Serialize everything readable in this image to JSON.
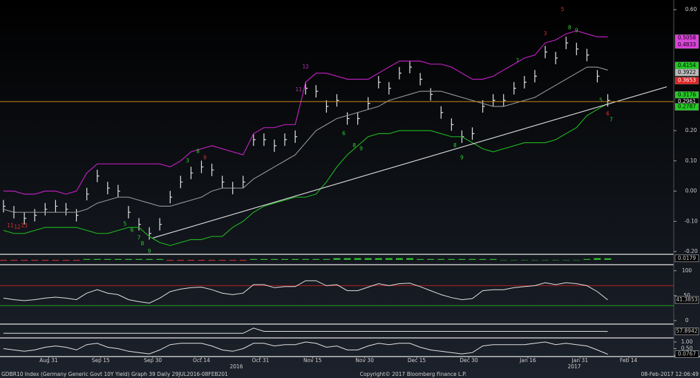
{
  "chart_data": [
    {
      "type": "price",
      "x": [
        20,
        23,
        26,
        29,
        32,
        35,
        38,
        41,
        44,
        47,
        50,
        53,
        56,
        59,
        62,
        65,
        68,
        71,
        74,
        77,
        80,
        83,
        86,
        89,
        92,
        95,
        98,
        101,
        104,
        107,
        110,
        113,
        116,
        119,
        122,
        125,
        128,
        131,
        134,
        137,
        140,
        143,
        146,
        149,
        152,
        155,
        158,
        161,
        164,
        167,
        170,
        173,
        176,
        179,
        182,
        185,
        188,
        191,
        194
      ],
      "xlim": [
        19,
        213
      ],
      "xticks": [
        {
          "value": 33,
          "label": "Aug 31"
        },
        {
          "value": 48,
          "label": "Sep 15"
        },
        {
          "value": 63,
          "label": "Sep 30"
        },
        {
          "value": 77,
          "label": "Oct 14"
        },
        {
          "value": 94,
          "label": "Oct 31"
        },
        {
          "value": 109,
          "label": "Nov 15"
        },
        {
          "value": 124,
          "label": "Nov 30"
        },
        {
          "value": 139,
          "label": "Dec 15"
        },
        {
          "value": 154,
          "label": "Dec 30"
        },
        {
          "value": 171,
          "label": "Jan 16"
        },
        {
          "value": 186,
          "label": "Jan 31"
        },
        {
          "value": 200,
          "label": "Feb 14"
        }
      ],
      "ylim": [
        -0.209,
        0.632
      ],
      "yticks": [
        {
          "value": 0.6,
          "label": "0.60"
        },
        {
          "value": 0.2,
          "label": "0.20"
        },
        {
          "value": 0.1,
          "label": "0.10"
        },
        {
          "value": 0,
          "label": "0.00"
        },
        {
          "value": -0.1,
          "label": "-0.10"
        },
        {
          "value": -0.2,
          "label": "-0.20"
        }
      ],
      "series": [
        {
          "color": "#e8e8e8",
          "style": "bars",
          "values": [
            -0.05,
            -0.07,
            -0.09,
            -0.08,
            -0.06,
            -0.05,
            -0.06,
            -0.08,
            -0.01,
            0.05,
            0.01,
            0.0,
            -0.07,
            -0.11,
            -0.14,
            -0.11,
            -0.02,
            0.03,
            0.06,
            0.08,
            0.07,
            0.03,
            0.01,
            0.03,
            0.17,
            0.17,
            0.15,
            0.17,
            0.18,
            0.34,
            0.33,
            0.28,
            0.3,
            0.24,
            0.24,
            0.29,
            0.36,
            0.34,
            0.39,
            0.41,
            0.37,
            0.32,
            0.26,
            0.22,
            0.18,
            0.19,
            0.28,
            0.3,
            0.3,
            0.34,
            0.36,
            0.38,
            0.46,
            0.44,
            0.49,
            0.47,
            0.45,
            0.38,
            0.3
          ]
        },
        {
          "color": "#c020c0",
          "style": "line",
          "values": [
            0.0,
            0.0,
            -0.01,
            -0.01,
            0.0,
            0.0,
            -0.01,
            0.0,
            0.06,
            0.09,
            0.09,
            0.09,
            0.09,
            0.09,
            0.09,
            0.09,
            0.08,
            0.1,
            0.13,
            0.14,
            0.15,
            0.14,
            0.13,
            0.12,
            0.19,
            0.21,
            0.21,
            0.22,
            0.22,
            0.36,
            0.39,
            0.39,
            0.38,
            0.37,
            0.37,
            0.37,
            0.39,
            0.41,
            0.43,
            0.43,
            0.43,
            0.42,
            0.42,
            0.41,
            0.39,
            0.37,
            0.37,
            0.38,
            0.4,
            0.42,
            0.44,
            0.45,
            0.49,
            0.5,
            0.52,
            0.53,
            0.52,
            0.51,
            0.51
          ]
        },
        {
          "color": "#20b020",
          "style": "line",
          "values": [
            -0.13,
            -0.14,
            -0.14,
            -0.13,
            -0.12,
            -0.12,
            -0.12,
            -0.12,
            -0.13,
            -0.14,
            -0.14,
            -0.13,
            -0.12,
            -0.12,
            -0.15,
            -0.17,
            -0.18,
            -0.17,
            -0.16,
            -0.16,
            -0.15,
            -0.15,
            -0.12,
            -0.1,
            -0.07,
            -0.05,
            -0.04,
            -0.03,
            -0.02,
            -0.02,
            -0.01,
            0.03,
            0.08,
            0.12,
            0.15,
            0.18,
            0.19,
            0.19,
            0.2,
            0.2,
            0.2,
            0.2,
            0.19,
            0.18,
            0.18,
            0.16,
            0.14,
            0.13,
            0.14,
            0.15,
            0.16,
            0.16,
            0.16,
            0.17,
            0.19,
            0.21,
            0.25,
            0.27,
            0.29
          ]
        },
        {
          "color": "#909090",
          "style": "line",
          "values": [
            -0.06,
            -0.07,
            -0.07,
            -0.07,
            -0.07,
            -0.07,
            -0.07,
            -0.07,
            -0.06,
            -0.04,
            -0.03,
            -0.02,
            -0.02,
            -0.03,
            -0.04,
            -0.05,
            -0.05,
            -0.04,
            -0.03,
            -0.02,
            0.0,
            0.01,
            0.01,
            0.01,
            0.04,
            0.06,
            0.08,
            0.1,
            0.12,
            0.16,
            0.2,
            0.22,
            0.24,
            0.25,
            0.26,
            0.27,
            0.28,
            0.3,
            0.31,
            0.32,
            0.33,
            0.33,
            0.33,
            0.32,
            0.31,
            0.3,
            0.29,
            0.28,
            0.28,
            0.29,
            0.3,
            0.31,
            0.33,
            0.35,
            0.37,
            0.39,
            0.41,
            0.41,
            0.4
          ]
        }
      ],
      "trendline": {
        "color": "#d8d8d8",
        "x": [
          63,
          211
        ],
        "y": [
          -0.155,
          0.345
        ]
      },
      "last_labels": [
        {
          "value": 0.5058,
          "label": "0.5058",
          "color": "#e040e0",
          "text_color": "#000"
        },
        {
          "value": 0.4833,
          "label": "0.4833",
          "color": "#e040e0",
          "text_color": "#000"
        },
        {
          "value": 0.4154,
          "label": "0.4154",
          "color": "#22cc22",
          "text_color": "#000"
        },
        {
          "value": 0.3922,
          "label": "0.3922",
          "color": "#bbbbbb",
          "text_color": "#000"
        },
        {
          "value": 0.3653,
          "label": "0.3653",
          "color": "#e02020",
          "text_color": "#fff"
        },
        {
          "value": 0.3176,
          "label": "0.3176",
          "color": "#22cc22",
          "text_color": "#000"
        },
        {
          "value": 0.2961,
          "label": "0.2961",
          "color": "#000000",
          "text_color": "#fff",
          "line_color": "#d09020"
        },
        {
          "value": 0.2787,
          "label": "0.2787",
          "color": "#22cc22",
          "text_color": "#000"
        }
      ],
      "annotations": [
        {
          "x": 22,
          "y": -0.115,
          "text": "11",
          "color": "#e03030"
        },
        {
          "x": 24,
          "y": -0.12,
          "text": "12",
          "color": "#e03030"
        },
        {
          "x": 26,
          "y": -0.115,
          "text": "13",
          "color": "#e03030"
        },
        {
          "x": 55,
          "y": -0.11,
          "text": "5",
          "color": "#30d030"
        },
        {
          "x": 57,
          "y": -0.13,
          "text": "6",
          "color": "#30d030"
        },
        {
          "x": 59,
          "y": -0.155,
          "text": "7",
          "color": "#30d030"
        },
        {
          "x": 60,
          "y": -0.175,
          "text": "8",
          "color": "#30d030"
        },
        {
          "x": 62,
          "y": -0.2,
          "text": "9",
          "color": "#30d030"
        },
        {
          "x": 73,
          "y": 0.1,
          "text": "3",
          "color": "#30d030"
        },
        {
          "x": 76,
          "y": 0.13,
          "text": "8",
          "color": "#30d030"
        },
        {
          "x": 78,
          "y": 0.11,
          "text": "9",
          "color": "#e03030"
        },
        {
          "x": 105,
          "y": 0.335,
          "text": "11",
          "color": "#c030c0"
        },
        {
          "x": 107,
          "y": 0.41,
          "text": "12",
          "color": "#c030c0"
        },
        {
          "x": 118,
          "y": 0.19,
          "text": "6",
          "color": "#30d030"
        },
        {
          "x": 121,
          "y": 0.15,
          "text": "8",
          "color": "#30d030"
        },
        {
          "x": 123,
          "y": 0.14,
          "text": "9",
          "color": "#30d030"
        },
        {
          "x": 150,
          "y": 0.15,
          "text": "8",
          "color": "#30d030"
        },
        {
          "x": 152,
          "y": 0.11,
          "text": "9",
          "color": "#30d030"
        },
        {
          "x": 168,
          "y": 0.43,
          "text": "7",
          "color": "#30d030"
        },
        {
          "x": 176,
          "y": 0.52,
          "text": "3",
          "color": "#e03030"
        },
        {
          "x": 181,
          "y": 0.6,
          "text": "5",
          "color": "#e03030"
        },
        {
          "x": 183,
          "y": 0.54,
          "text": "8",
          "color": "#30d030"
        },
        {
          "x": 185,
          "y": 0.53,
          "text": "9",
          "color": "#30d030"
        },
        {
          "x": 192,
          "y": 0.3,
          "text": "5",
          "color": "#30d030"
        },
        {
          "x": 194,
          "y": 0.255,
          "text": "6",
          "color": "#e03030"
        },
        {
          "x": 195,
          "y": 0.235,
          "text": "7",
          "color": "#30d030"
        }
      ]
    },
    {
      "type": "histogram",
      "color": "#30c030",
      "ylim": [
        -0.05,
        0.05
      ],
      "last_value": 0.0179,
      "values": [
        -0.01,
        -0.01,
        -0.01,
        -0.01,
        -0.01,
        -0.01,
        -0.01,
        -0.01,
        0.01,
        0.01,
        0.01,
        0.01,
        0.01,
        0.01,
        0.01,
        0.01,
        -0.01,
        -0.01,
        -0.01,
        -0.01,
        -0.01,
        -0.01,
        -0.01,
        -0.01,
        0.01,
        0.01,
        0.01,
        0.01,
        0.01,
        0.01,
        0.01,
        0.01,
        0.02,
        0.02,
        0.02,
        0.02,
        0.02,
        0.02,
        0.02,
        0.02,
        0.01,
        0.01,
        0.01,
        0.01,
        0.01,
        0.01,
        0.01,
        0.01,
        0.0,
        0.0,
        0.0,
        0.0,
        0.0,
        0.0,
        0.0,
        0.0,
        0.01,
        0.02,
        0.0179
      ]
    },
    {
      "type": "line",
      "color": "#e8e8e8",
      "ylim": [
        -3,
        108
      ],
      "yticks": [
        100,
        50,
        0
      ],
      "last_value": 41.3853,
      "levels": [
        {
          "value": 70,
          "color": "#c02020"
        },
        {
          "value": 30,
          "color": "#20a020"
        }
      ],
      "values": [
        45,
        42,
        40,
        42,
        45,
        47,
        45,
        42,
        55,
        62,
        55,
        52,
        42,
        38,
        35,
        45,
        58,
        63,
        66,
        67,
        62,
        55,
        52,
        55,
        72,
        72,
        66,
        68,
        68,
        80,
        80,
        70,
        72,
        60,
        60,
        67,
        74,
        70,
        74,
        75,
        68,
        60,
        52,
        46,
        42,
        44,
        60,
        62,
        62,
        66,
        68,
        70,
        76,
        72,
        76,
        74,
        70,
        58,
        41.3853
      ]
    },
    {
      "type": "line",
      "color": "#e8e8e8",
      "ylim": [
        50,
        66
      ],
      "last_value": 57.8942,
      "values": [
        55,
        55,
        55,
        55,
        55,
        55,
        55,
        55,
        55,
        55,
        55,
        55,
        55,
        55,
        55,
        55,
        55,
        55,
        55,
        55,
        55,
        55,
        55,
        55,
        63,
        58,
        58,
        58,
        58,
        58,
        58,
        58,
        58,
        58,
        58,
        58,
        58,
        58,
        58,
        58,
        58,
        58,
        58,
        58,
        58,
        58,
        58,
        58,
        58,
        58,
        58,
        58,
        58,
        58,
        58,
        58,
        58,
        58,
        57.8942
      ]
    },
    {
      "type": "line",
      "color": "#e8e8e8",
      "ylim": [
        -0.05,
        1.15
      ],
      "yticks": [
        {
          "value": 1,
          "label": "1.00"
        },
        {
          "value": 0.5,
          "label": "0.50"
        },
        {
          "value": 0,
          "label": "0.00"
        }
      ],
      "last_value": 0.0767,
      "values": [
        0.5,
        0.4,
        0.3,
        0.4,
        0.6,
        0.7,
        0.6,
        0.4,
        0.8,
        0.9,
        0.6,
        0.5,
        0.3,
        0.2,
        0.1,
        0.4,
        0.8,
        0.9,
        0.9,
        0.9,
        0.7,
        0.4,
        0.3,
        0.5,
        0.9,
        0.9,
        0.7,
        0.8,
        0.8,
        1.0,
        0.9,
        0.6,
        0.7,
        0.4,
        0.4,
        0.7,
        0.9,
        0.8,
        0.9,
        0.9,
        0.6,
        0.4,
        0.3,
        0.2,
        0.1,
        0.2,
        0.7,
        0.8,
        0.8,
        0.8,
        0.8,
        0.9,
        1.0,
        0.8,
        0.9,
        0.8,
        0.7,
        0.4,
        0.0767
      ]
    }
  ],
  "years": [
    "2016",
    "2017"
  ],
  "footer": {
    "left": "GDBR10 Index (Germany Generic Govt 10Y Yield) Graph 39  Daily 29JUL2016-08FEB201",
    "center": "Copyright© 2017 Bloomberg Finance L.P.",
    "right": "08-Feb-2017 12:06:49"
  }
}
